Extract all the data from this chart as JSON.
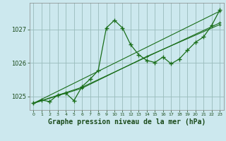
{
  "title": "Graphe pression niveau de la mer (hPa)",
  "bg_color": "#cce8ee",
  "grid_color": "#99bbbb",
  "line_color": "#1a6e1a",
  "text_color": "#1a4a1a",
  "xlim": [
    -0.5,
    23.5
  ],
  "ylim": [
    1024.6,
    1027.8
  ],
  "yticks": [
    1025,
    1026,
    1027
  ],
  "xticks": [
    0,
    1,
    2,
    3,
    4,
    5,
    6,
    7,
    8,
    9,
    10,
    11,
    12,
    13,
    14,
    15,
    16,
    17,
    18,
    19,
    20,
    21,
    22,
    23
  ],
  "series1": [
    1024.8,
    1024.9,
    1024.85,
    1025.05,
    1025.1,
    1024.88,
    1025.3,
    1025.52,
    1025.78,
    1027.05,
    1027.28,
    1027.05,
    1026.55,
    1026.25,
    1026.08,
    1026.02,
    1026.18,
    1025.98,
    1026.12,
    1026.38,
    1026.62,
    1026.78,
    1027.12,
    1027.58
  ],
  "series2_x": [
    0,
    23
  ],
  "series2_y": [
    1024.8,
    1027.55
  ],
  "series3_x": [
    0,
    6,
    23
  ],
  "series3_y": [
    1024.8,
    1025.28,
    1027.2
  ],
  "series4_x": [
    0,
    6,
    14,
    23
  ],
  "series4_y": [
    1024.8,
    1025.25,
    1026.2,
    1027.15
  ],
  "xlabel_fontsize": 7,
  "ylabel_fontsize": 7,
  "title_fontsize": 7
}
